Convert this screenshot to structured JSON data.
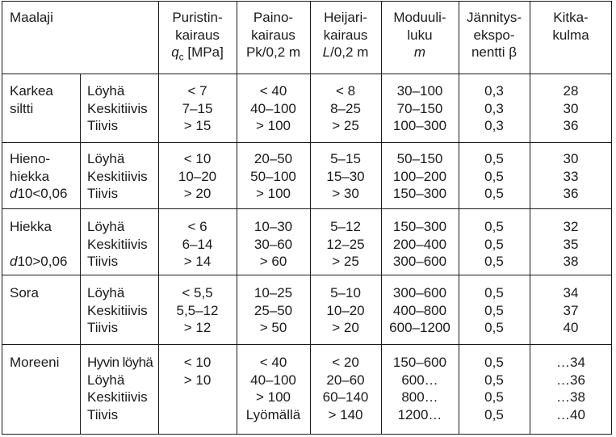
{
  "headers": {
    "soil": "Maalaji",
    "cone": [
      "Puristin-",
      "kairaus",
      "qc [MPa]"
    ],
    "weight": [
      "Paino-",
      "kairaus",
      "Pk/0,2 m"
    ],
    "ram": [
      "Heijari-",
      "kairaus",
      "L/0,2 m"
    ],
    "modulus": [
      "Moduuli-",
      "luku",
      "m"
    ],
    "stress": [
      "Jännitys-",
      "ekspo-",
      "nentti β"
    ],
    "friction": [
      "Kitka-",
      "kulma"
    ]
  },
  "groups": [
    {
      "name": [
        "Karkea",
        "siltti"
      ],
      "states": [
        "Löyhä",
        "Keskitiivis",
        "Tiivis"
      ],
      "qc": [
        "< 7",
        "7–15",
        "> 15"
      ],
      "pk": [
        "< 40",
        "40–100",
        "> 100"
      ],
      "l": [
        "< 8",
        "8–25",
        "> 25"
      ],
      "m": [
        "30–100",
        "70–150",
        "100–300"
      ],
      "beta": [
        "0,3",
        "0,3",
        "0,3"
      ],
      "phi": [
        "28",
        "30",
        "36"
      ]
    },
    {
      "name": [
        "Hieno-",
        "hiekka",
        "d10<0,06"
      ],
      "states": [
        "Löyhä",
        "Keskitiivis",
        "Tiivis"
      ],
      "qc": [
        "< 10",
        "10–20",
        "> 20"
      ],
      "pk": [
        "20–50",
        "50–100",
        "> 100"
      ],
      "l": [
        "5–15",
        "15–30",
        "> 30"
      ],
      "m": [
        "50–150",
        "100–200",
        "150–300"
      ],
      "beta": [
        "0,5",
        "0,5",
        "0,5"
      ],
      "phi": [
        "30",
        "33",
        "36"
      ]
    },
    {
      "name": [
        "Hiekka",
        "",
        "d10>0,06"
      ],
      "states": [
        "Löyhä",
        "Keskitiivis",
        "Tiivis"
      ],
      "qc": [
        "< 6",
        "6–14",
        "> 14"
      ],
      "pk": [
        "10–30",
        "30–60",
        "> 60"
      ],
      "l": [
        "5–12",
        "12–25",
        "> 25"
      ],
      "m": [
        "150–300",
        "200–400",
        "300–600"
      ],
      "beta": [
        "0,5",
        "0,5",
        "0,5"
      ],
      "phi": [
        "32",
        "35",
        "38"
      ]
    },
    {
      "name": [
        "Sora"
      ],
      "states": [
        "Löyhä",
        "Keskitiivis",
        "Tiivis"
      ],
      "qc": [
        "< 5,5",
        "5,5–12",
        "> 12"
      ],
      "pk": [
        "10–25",
        "25–50",
        "> 50"
      ],
      "l": [
        "5–10",
        "10–20",
        "> 20"
      ],
      "m": [
        "300–600",
        "400–800",
        "600–1200"
      ],
      "beta": [
        "0,5",
        "0,5",
        "0,5"
      ],
      "phi": [
        "34",
        "37",
        "40"
      ]
    },
    {
      "name": [
        "Moreeni"
      ],
      "states": [
        "Hyvin löyhä",
        "Löyhä",
        "Keskitiivis",
        "Tiivis"
      ],
      "qc": [
        "< 10",
        "> 10",
        "",
        ""
      ],
      "pk": [
        "< 40",
        "40–100",
        "> 100",
        "Lyömällä"
      ],
      "l": [
        "< 20",
        "20–60",
        "60–140",
        "> 140"
      ],
      "m": [
        "150–600",
        "600…",
        "800…",
        "1200…"
      ],
      "beta": [
        "0,5",
        "0,5",
        "0,5",
        "0,5"
      ],
      "phi": [
        "…34",
        "…36",
        "…38",
        "…40"
      ]
    }
  ]
}
